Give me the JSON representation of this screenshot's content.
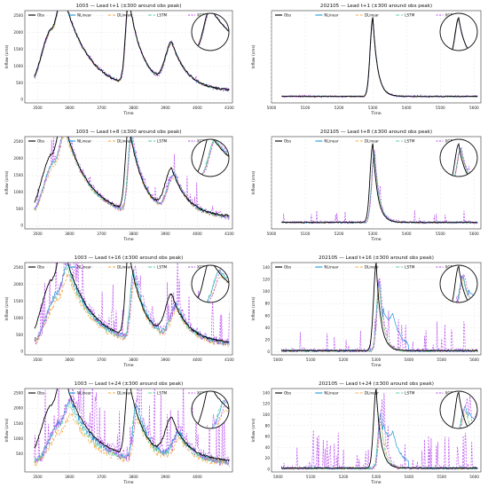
{
  "series_styles": [
    {
      "name": "Obs",
      "color": "#000000",
      "dash": ""
    },
    {
      "name": "NLinear",
      "color": "#1f9bd7",
      "dash": ""
    },
    {
      "name": "DLinear",
      "color": "#f4a742",
      "dash": "3,2"
    },
    {
      "name": "LSTM",
      "color": "#5fcf9f",
      "dash": "4,2"
    },
    {
      "name": "XGB",
      "color": "#b94bf0",
      "dash": "2,1.5"
    }
  ],
  "chart_data": [
    {
      "type": "line",
      "title": "1003 — Lead t+1 (±300 around obs peak)",
      "xlabel": "Time",
      "ylabel": "Inflow (cms)",
      "xlim": [
        3460,
        4110
      ],
      "ylim": [
        -100,
        2650
      ],
      "xticks": [
        3500,
        3600,
        3700,
        3800,
        3900,
        4000,
        4100
      ],
      "yticks": [
        0,
        500,
        1000,
        1500,
        2000,
        2500
      ],
      "lead": 1,
      "obs_peak_x": 3785,
      "legend": [
        "Obs",
        "NLinear",
        "DLinear",
        "LSTM",
        "XGB"
      ],
      "inset": "circle-top-right"
    },
    {
      "type": "line",
      "title": "202105 — Lead t+1 (±300 around obs peak)",
      "xlabel": "Time",
      "ylabel": "Inflow (cms)",
      "xlim": [
        5000,
        5620
      ],
      "ylim": [
        -10,
        160
      ],
      "xticks": [
        5000,
        5100,
        5200,
        5300,
        5400,
        5500,
        5600
      ],
      "yticks": [],
      "lead": 1,
      "obs_peak_x": 5300,
      "legend": [
        "Obs",
        "NLinear",
        "DLinear",
        "LSTM",
        "XGB"
      ],
      "inset": "circle-top-right"
    },
    {
      "type": "line",
      "title": "1003 — Lead t+8 (±300 around obs peak)",
      "xlabel": "Time",
      "ylabel": "Inflow (cms)",
      "xlim": [
        3460,
        4110
      ],
      "ylim": [
        -100,
        2650
      ],
      "xticks": [
        3500,
        3600,
        3700,
        3800,
        3900,
        4000,
        4100
      ],
      "yticks": [
        0,
        500,
        1000,
        1500,
        2000,
        2500
      ],
      "lead": 8,
      "obs_peak_x": 3785,
      "legend": [
        "Obs",
        "NLinear",
        "DLinear",
        "LSTM",
        "XGB"
      ],
      "inset": "circle-top-right"
    },
    {
      "type": "line",
      "title": "202105 — Lead t+8 (±300 around obs peak)",
      "xlabel": "Time",
      "ylabel": "Inflow (cms)",
      "xlim": [
        5000,
        5620
      ],
      "ylim": [
        -10,
        160
      ],
      "xticks": [
        5000,
        5100,
        5200,
        5300,
        5400,
        5500,
        5600
      ],
      "yticks": [],
      "lead": 8,
      "obs_peak_x": 5300,
      "legend": [
        "Obs",
        "NLinear",
        "DLinear",
        "LSTM",
        "XGB"
      ],
      "inset": "circle-top-right"
    },
    {
      "type": "line",
      "title": "1003 — Lead t+16 (±300 around obs peak)",
      "xlabel": "Time",
      "ylabel": "Inflow (cms)",
      "xlim": [
        3460,
        4110
      ],
      "ylim": [
        -100,
        2650
      ],
      "xticks": [
        3500,
        3600,
        3700,
        3800,
        3900,
        4000,
        4100
      ],
      "yticks": [
        0,
        500,
        1000,
        1500,
        2000,
        2500
      ],
      "lead": 16,
      "obs_peak_x": 3785,
      "legend": [
        "Obs",
        "NLinear",
        "DLinear",
        "LSTM",
        "XGB"
      ],
      "inset": "circle-top-right"
    },
    {
      "type": "line",
      "title": "202105 — Lead t+16 (±300 around obs peak)",
      "xlabel": "Time",
      "ylabel": "Inflow (cms)",
      "xlim": [
        4980,
        5620
      ],
      "ylim": [
        -5,
        148
      ],
      "xticks": [
        5000,
        5100,
        5200,
        5300,
        5400,
        5500,
        5600
      ],
      "yticks": [
        0,
        20,
        40,
        60,
        80,
        100,
        120,
        140
      ],
      "lead": 16,
      "obs_peak_x": 5300,
      "legend": [
        "Obs",
        "NLinear",
        "DLinear",
        "LSTM",
        "XGB"
      ],
      "inset": "circle-top-right"
    },
    {
      "type": "line",
      "title": "1003 — Lead t+24 (±300 around obs peak)",
      "xlabel": "Time",
      "ylabel": "Inflow (cms)",
      "xlim": [
        3460,
        4110
      ],
      "ylim": [
        -100,
        2650
      ],
      "xticks": [
        3500,
        3600,
        3700,
        3800,
        3900,
        4000
      ],
      "yticks": [
        500,
        1000,
        1500,
        2000,
        2500
      ],
      "lead": 24,
      "obs_peak_x": 3785,
      "legend": [
        "Obs",
        "NLinear",
        "DLinear",
        "LSTM",
        "XGB"
      ],
      "inset": "circle-top-right"
    },
    {
      "type": "line",
      "title": "202105 — Lead t+24 (±300 around obs peak)",
      "xlabel": "Time",
      "ylabel": "Inflow (cms)",
      "xlim": [
        4980,
        5620
      ],
      "ylim": [
        -5,
        148
      ],
      "xticks": [
        5000,
        5100,
        5200,
        5300,
        5400,
        5500,
        5600
      ],
      "yticks": [
        0,
        20,
        40,
        60,
        80,
        100,
        120,
        140
      ],
      "lead": 24,
      "obs_peak_x": 5300,
      "legend": [
        "Obs",
        "NLinear",
        "DLinear",
        "LSTM",
        "XGB"
      ],
      "inset": "circle-top-right"
    }
  ]
}
